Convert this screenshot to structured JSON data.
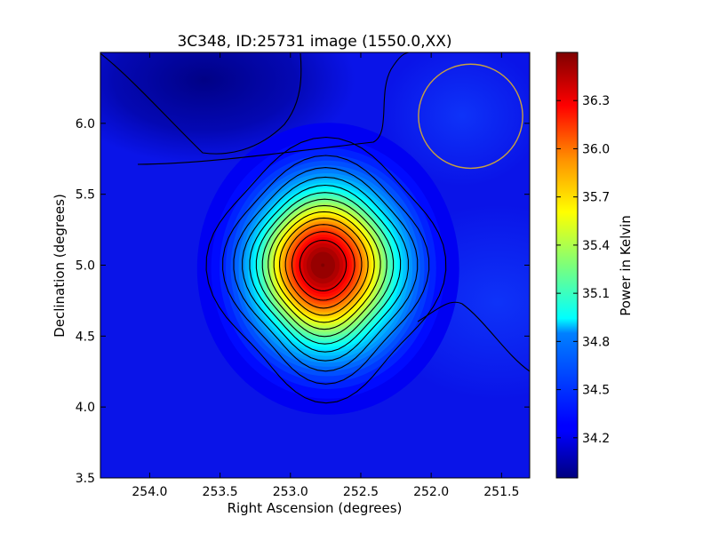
{
  "chart_data": {
    "type": "heatmap",
    "title": "3C348, ID:25731 image (1550.0,XX)",
    "xlabel": "Right Ascension (degrees)",
    "ylabel": "Declination (degrees)",
    "xlim": [
      254.35,
      251.3
    ],
    "ylim": [
      3.5,
      6.5
    ],
    "xticks": [
      254.0,
      253.5,
      253.0,
      252.5,
      252.0,
      251.5
    ],
    "xtick_labels": [
      "254.0",
      "253.5",
      "253.0",
      "252.5",
      "252.0",
      "251.5"
    ],
    "yticks": [
      3.5,
      4.0,
      4.5,
      5.0,
      5.5,
      6.0
    ],
    "ytick_labels": [
      "3.5",
      "4.0",
      "4.5",
      "5.0",
      "5.5",
      "6.0"
    ],
    "peak": {
      "ra": 252.77,
      "dec": 5.0,
      "value": 36.6
    },
    "background_level": 34.2,
    "beam_circle": {
      "ra": 251.72,
      "dec": 6.05,
      "radius_deg": 0.37,
      "color": "#c8a040"
    },
    "contour_lines": 13,
    "colorbar": {
      "label": "Power in Kelvin",
      "range": [
        33.95,
        36.6
      ],
      "ticks": [
        34.2,
        34.5,
        34.8,
        35.1,
        35.4,
        35.7,
        36.0,
        36.3
      ],
      "tick_labels": [
        "34.2",
        "34.5",
        "34.8",
        "35.1",
        "35.4",
        "35.7",
        "36.0",
        "36.3"
      ],
      "colormap": "jet"
    }
  }
}
